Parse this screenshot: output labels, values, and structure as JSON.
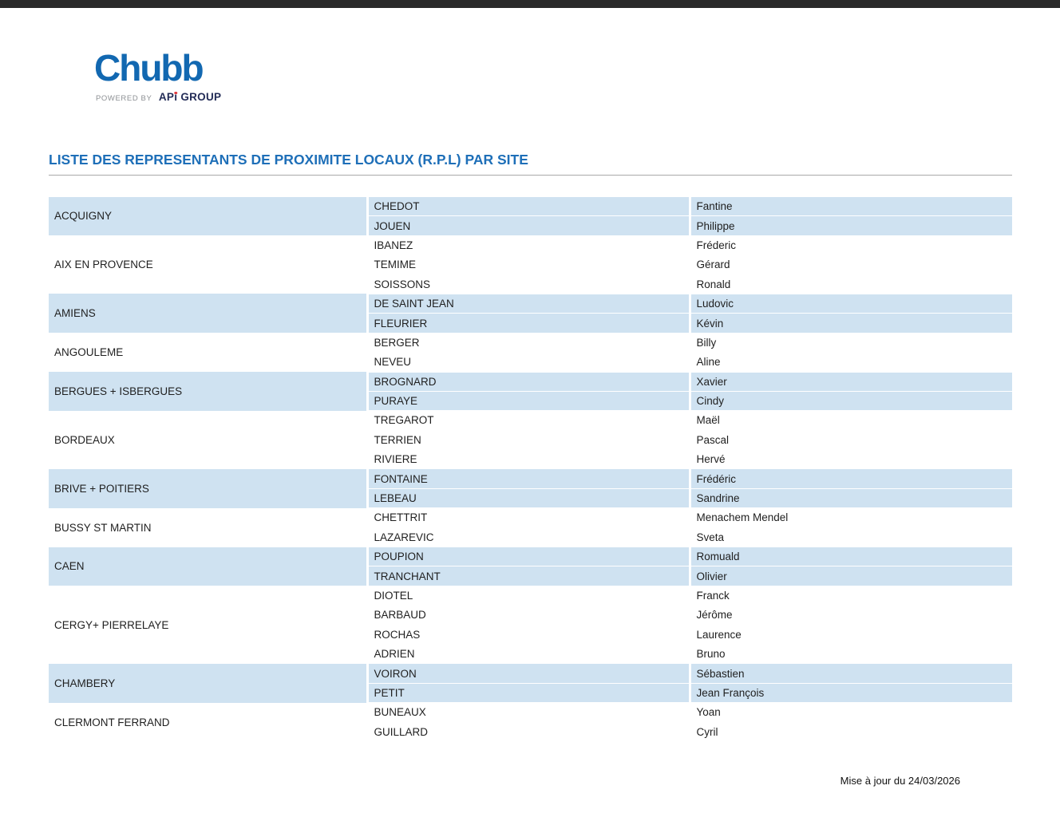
{
  "page": {
    "title": "LISTE DES REPRESENTANTS DE PROXIMITE LOCAUX (R.P.L) PAR SITE",
    "footer_note": "Mise à jour du 24/03/2026"
  },
  "logo": {
    "brand": "Chubb",
    "powered_by": "POWERED BY",
    "group_prefix": "AP",
    "group_i": "ı",
    "group_suffix": " GROUP"
  },
  "colors": {
    "row_shade": "#cfe2f1",
    "title_blue": "#1e6fb8",
    "brand_blue": "#1268b1",
    "group_navy": "#232c57",
    "group_dot_red": "#e03a3e",
    "top_bar": "#2a2a2a"
  },
  "table": {
    "sites": [
      {
        "site": "ACQUIGNY",
        "people": [
          {
            "last": "CHEDOT",
            "first": "Fantine"
          },
          {
            "last": "JOUEN",
            "first": "Philippe"
          }
        ]
      },
      {
        "site": "AIX EN PROVENCE",
        "people": [
          {
            "last": "IBANEZ",
            "first": "Fréderic"
          },
          {
            "last": "TEMIME",
            "first": "Gérard"
          },
          {
            "last": "SOISSONS",
            "first": "Ronald"
          }
        ]
      },
      {
        "site": "AMIENS",
        "people": [
          {
            "last": "DE SAINT JEAN",
            "first": "Ludovic"
          },
          {
            "last": "FLEURIER",
            "first": "Kévin"
          }
        ]
      },
      {
        "site": "ANGOULEME",
        "people": [
          {
            "last": "BERGER",
            "first": "Billy"
          },
          {
            "last": "NEVEU",
            "first": "Aline"
          }
        ]
      },
      {
        "site": "BERGUES + ISBERGUES",
        "people": [
          {
            "last": "BROGNARD",
            "first": "Xavier"
          },
          {
            "last": "PURAYE",
            "first": "Cindy"
          }
        ]
      },
      {
        "site": "BORDEAUX",
        "people": [
          {
            "last": "TREGAROT",
            "first": "Maël"
          },
          {
            "last": "TERRIEN",
            "first": "Pascal"
          },
          {
            "last": "RIVIERE",
            "first": "Hervé"
          }
        ]
      },
      {
        "site": "BRIVE + POITIERS",
        "people": [
          {
            "last": "FONTAINE",
            "first": "Frédéric"
          },
          {
            "last": "LEBEAU",
            "first": "Sandrine"
          }
        ]
      },
      {
        "site": "BUSSY ST MARTIN",
        "people": [
          {
            "last": "CHETTRIT",
            "first": "Menachem Mendel"
          },
          {
            "last": "LAZAREVIC",
            "first": "Sveta"
          }
        ]
      },
      {
        "site": "CAEN",
        "people": [
          {
            "last": "POUPION",
            "first": "Romuald"
          },
          {
            "last": "TRANCHANT",
            "first": "Olivier"
          }
        ]
      },
      {
        "site": "CERGY+ PIERRELAYE",
        "people": [
          {
            "last": "DIOTEL",
            "first": "Franck"
          },
          {
            "last": "BARBAUD",
            "first": "Jérôme"
          },
          {
            "last": "ROCHAS",
            "first": "Laurence"
          },
          {
            "last": "ADRIEN",
            "first": "Bruno"
          }
        ]
      },
      {
        "site": "CHAMBERY",
        "people": [
          {
            "last": "VOIRON",
            "first": "Sébastien"
          },
          {
            "last": "PETIT",
            "first": "Jean François"
          }
        ]
      },
      {
        "site": "CLERMONT FERRAND",
        "people": [
          {
            "last": "BUNEAUX",
            "first": "Yoan"
          },
          {
            "last": "GUILLARD",
            "first": "Cyril"
          }
        ]
      }
    ]
  }
}
